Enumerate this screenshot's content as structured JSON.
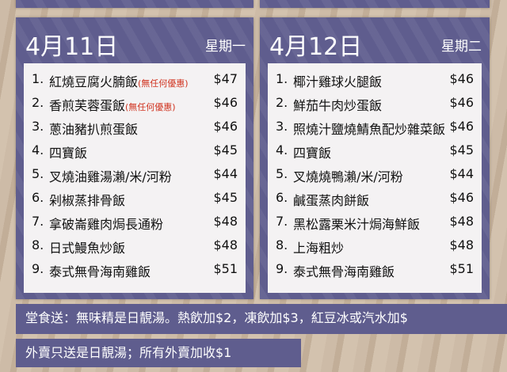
{
  "days": [
    {
      "date": "4月11日",
      "weekday": "星期一",
      "items": [
        {
          "num": "1.",
          "name": "紅燒豆腐火腩飯",
          "note": "(無任何優惠)",
          "price": "$47"
        },
        {
          "num": "2.",
          "name": "香煎芙蓉蛋飯",
          "note": "(無任何優惠)",
          "price": "$46"
        },
        {
          "num": "3.",
          "name": "蔥油豬扒煎蛋飯",
          "price": "$46"
        },
        {
          "num": "4.",
          "name": "四寶飯",
          "price": "$45"
        },
        {
          "num": "5.",
          "name": "叉燒油雞湯瀨/米/河粉",
          "price": "$44"
        },
        {
          "num": "6.",
          "name": "剁椒蒸排骨飯",
          "price": "$45"
        },
        {
          "num": "7.",
          "name": "拿破崙雞肉焗長通粉",
          "price": "$48"
        },
        {
          "num": "8.",
          "name": "日式鰻魚炒飯",
          "price": "$48"
        },
        {
          "num": "9.",
          "name": "泰式無骨海南雞飯",
          "price": "$51"
        }
      ]
    },
    {
      "date": "4月12日",
      "weekday": "星期二",
      "items": [
        {
          "num": "1.",
          "name": "椰汁雞球火腿飯",
          "price": "$46"
        },
        {
          "num": "2.",
          "name": "鮮茄牛肉炒蛋飯",
          "price": "$46"
        },
        {
          "num": "3.",
          "name": "照燒汁鹽燒鯖魚配炒雜菜飯",
          "price": "$46"
        },
        {
          "num": "4.",
          "name": "四寶飯",
          "price": "$45"
        },
        {
          "num": "5.",
          "name": "叉燒燒鴨瀨/米/河粉",
          "price": "$44"
        },
        {
          "num": "6.",
          "name": "鹹蛋蒸肉餅飯",
          "price": "$46"
        },
        {
          "num": "7.",
          "name": "黑松露栗米汁焗海鮮飯",
          "price": "$48"
        },
        {
          "num": "8.",
          "name": "上海粗炒",
          "price": "$48"
        },
        {
          "num": "9.",
          "name": "泰式無骨海南雞飯",
          "price": "$51"
        }
      ]
    }
  ],
  "footer": {
    "dine_in": "堂食送：無味精是日靚湯。熱飲加$2，凍飲加$3，紅豆冰或汽水加$",
    "takeaway": "外賣只送是日靚湯；所有外賣加收$1"
  }
}
